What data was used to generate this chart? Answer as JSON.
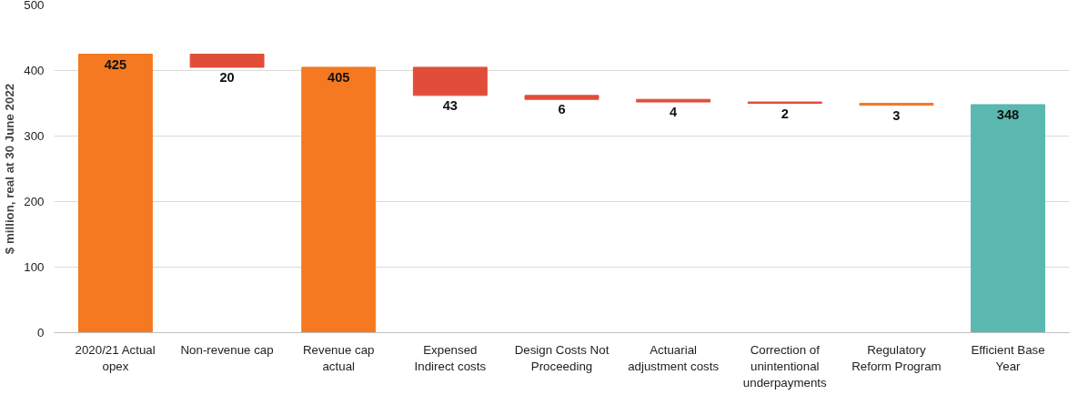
{
  "chart_data": {
    "type": "bar",
    "ylabel": "$ million, real at 30 June 2022",
    "categories": [
      "2020/21 Actual opex",
      "Non-revenue cap",
      "Revenue cap actual",
      "Expensed Indirect costs",
      "Design Costs Not Proceeding",
      "Actuarial adjustment costs",
      "Correction of unintentional underpayments",
      "Regulatory Reform Program",
      "Efficient Base Year"
    ],
    "values": [
      425,
      20,
      405,
      43,
      6,
      4,
      2,
      3,
      348
    ],
    "base": [
      0,
      405,
      0,
      362,
      356,
      352,
      350,
      347,
      0
    ],
    "colors": [
      "#f47920",
      "#e04e39",
      "#f47920",
      "#e04e39",
      "#e04e39",
      "#e04e39",
      "#e04e39",
      "#f47920",
      "#5bb8b0"
    ],
    "data_labels": true,
    "ylim": [
      0,
      500
    ],
    "yticks": [
      0,
      100,
      200,
      300,
      400,
      500
    ],
    "grid": "y"
  }
}
